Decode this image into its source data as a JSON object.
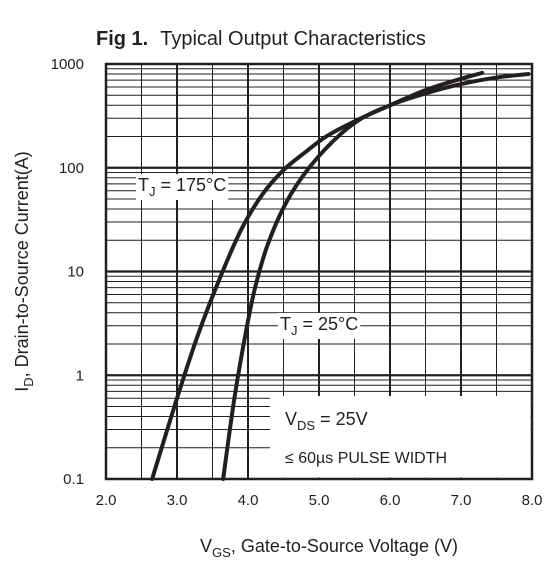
{
  "figure": {
    "label": "Fig 1.",
    "title": "Typical Output Characteristics"
  },
  "chart_data": {
    "type": "line",
    "title": "Typical Output Characteristics",
    "xlabel": {
      "prefix": "V",
      "sub": "GS",
      "rest": ", Gate-to-Source Voltage (V)"
    },
    "ylabel": {
      "prefix": "I",
      "sub": "D",
      "rest": ", Drain-to-Source Current(A)"
    },
    "xlim": [
      2.0,
      8.0
    ],
    "ylim": [
      0.1,
      1000
    ],
    "yscale": "log",
    "grid": true,
    "x_tick_labels": [
      "2.0",
      "3.0",
      "4.0",
      "5.0",
      "6.0",
      "7.0",
      "8.0"
    ],
    "y_tick_labels": [
      "0.1",
      "1",
      "10",
      "100",
      "1000"
    ],
    "series": [
      {
        "name": "TJ = 175°C",
        "label": {
          "prefix": "T",
          "sub": "J",
          "rest": " = 175°C"
        },
        "x": [
          2.65,
          3.0,
          3.3,
          3.6,
          3.9,
          4.2,
          4.5,
          4.8,
          5.1,
          5.5,
          6.0,
          6.5,
          7.0,
          7.3
        ],
        "y": [
          0.1,
          0.6,
          2.5,
          8.5,
          25,
          55,
          95,
          140,
          200,
          280,
          400,
          560,
          720,
          820
        ]
      },
      {
        "name": "TJ = 25°C",
        "label": {
          "prefix": "T",
          "sub": "J",
          "rest": " = 25°C"
        },
        "x": [
          3.65,
          3.8,
          3.95,
          4.1,
          4.3,
          4.6,
          5.0,
          5.5,
          6.0,
          6.5,
          7.0,
          7.5,
          7.95
        ],
        "y": [
          0.1,
          0.55,
          2.2,
          7,
          20,
          55,
          130,
          270,
          400,
          520,
          640,
          740,
          800
        ]
      }
    ],
    "annotations": [
      {
        "prefix": "V",
        "sub": "DS",
        "rest": " = 25V"
      },
      {
        "text": "≤ 60µs PULSE WIDTH"
      }
    ]
  }
}
